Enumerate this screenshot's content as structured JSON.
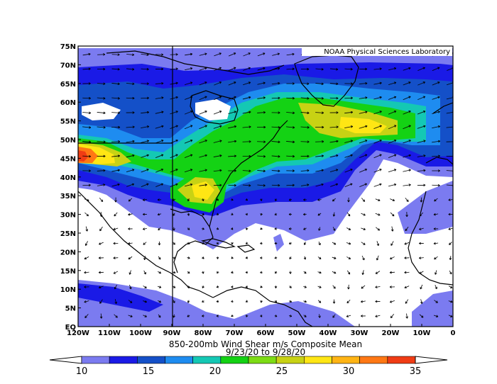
{
  "credit": "NOAA Physical Sciences Laboratory",
  "title_line1": "850-200mb Wind Shear m/s Composite Mean",
  "title_line2": "9/23/20  to 9/28/20",
  "lat_labels": [
    "75N",
    "70N",
    "65N",
    "60N",
    "55N",
    "50N",
    "45N",
    "40N",
    "35N",
    "30N",
    "25N",
    "20N",
    "15N",
    "10N",
    "5N",
    "EQ"
  ],
  "lon_labels": [
    "120W",
    "110W",
    "100W",
    "90W",
    "80W",
    "70W",
    "60W",
    "50W",
    "40W",
    "30W",
    "20W",
    "10W",
    "0"
  ],
  "colorbar": {
    "labels": [
      "10",
      "15",
      "20",
      "25",
      "30",
      "35"
    ],
    "colors": [
      "#ffffff",
      "#7b7bf0",
      "#1a1ae6",
      "#1450c8",
      "#1e8cf0",
      "#14c8b4",
      "#14d214",
      "#7ddc14",
      "#c8d214",
      "#ffe614",
      "#ffb414",
      "#ff7814",
      "#f03c14",
      "#ffffff"
    ]
  },
  "colors": {
    "ocean_bg": "#ffffff",
    "coast": "#000000",
    "vector": "#000000"
  }
}
